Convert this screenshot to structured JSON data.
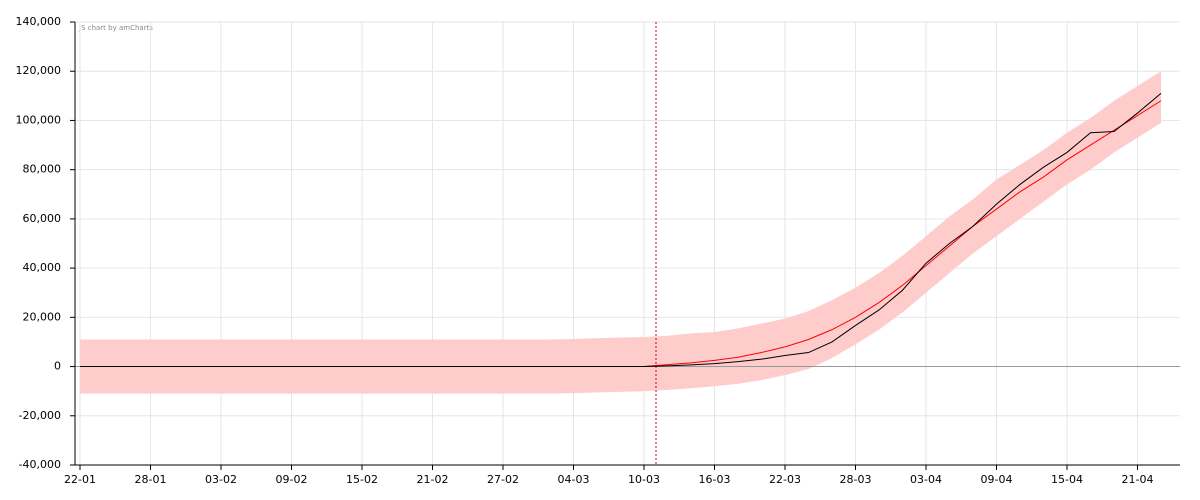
{
  "chart_data": {
    "type": "line",
    "credit": "JS chart by amCharts",
    "categories": [
      "22-01",
      null,
      null,
      "28-01",
      null,
      null,
      "03-02",
      null,
      null,
      "09-02",
      null,
      null,
      "15-02",
      null,
      null,
      "21-02",
      null,
      null,
      "27-02",
      null,
      null,
      "04-03",
      null,
      null,
      "10-03",
      null,
      null,
      "16-03",
      null,
      null,
      "22-03",
      null,
      null,
      "28-03",
      null,
      null,
      "03-04",
      null,
      null,
      "09-04",
      null,
      null,
      "15-04",
      null,
      null,
      "21-04",
      null
    ],
    "series": [
      {
        "color": "#ff0000",
        "values": [
          0,
          0,
          0,
          0,
          0,
          0,
          0,
          0,
          0,
          0,
          0,
          0,
          0,
          0,
          0,
          0,
          0,
          0,
          0,
          0,
          0,
          0,
          0,
          0,
          0,
          800,
          1500,
          2500,
          3800,
          5700,
          8000,
          11000,
          15000,
          20000,
          26000,
          33000,
          41000,
          49000,
          57000,
          64000,
          71000,
          77000,
          84000,
          90000,
          96000,
          102000,
          108000
        ]
      },
      {
        "color": "#000000",
        "values": [
          0,
          0,
          0,
          0,
          0,
          0,
          0,
          0,
          0,
          0,
          0,
          0,
          0,
          0,
          0,
          0,
          0,
          0,
          0,
          0,
          0,
          0,
          0,
          0,
          0,
          300,
          700,
          1200,
          2000,
          3000,
          4500,
          5700,
          10000,
          16700,
          23000,
          31000,
          42000,
          50000,
          57000,
          66000,
          74000,
          81000,
          87000,
          95000,
          95500,
          103000,
          111000
        ]
      }
    ],
    "band": {
      "color": "#ffcccc",
      "upper": [
        11000,
        11000,
        11000,
        11000,
        11000,
        11000,
        11000,
        11000,
        11000,
        11000,
        11000,
        11000,
        11000,
        11000,
        11000,
        11000,
        11000,
        11000,
        11000,
        11000,
        11000,
        11200,
        11500,
        11800,
        12000,
        12500,
        13500,
        14000,
        15500,
        17500,
        19500,
        22500,
        27000,
        32000,
        38000,
        45000,
        53000,
        61000,
        68000,
        76000,
        82000,
        88000,
        95000,
        101000,
        108000,
        114000,
        120000
      ],
      "lower": [
        -11000,
        -11000,
        -11000,
        -11000,
        -11000,
        -11000,
        -11000,
        -11000,
        -11000,
        -11000,
        -11000,
        -11000,
        -11000,
        -11000,
        -11000,
        -11000,
        -11000,
        -11000,
        -11000,
        -11000,
        -11000,
        -10800,
        -10500,
        -10300,
        -10000,
        -9500,
        -8800,
        -8000,
        -7000,
        -5500,
        -3500,
        -1000,
        3500,
        9000,
        15000,
        22000,
        30000,
        38000,
        46000,
        53000,
        60000,
        67000,
        74000,
        80000,
        87000,
        93000,
        99000
      ]
    },
    "ylim": [
      -40000,
      140000
    ],
    "yticks": [
      {
        "value": -40000,
        "label": "-40,000"
      },
      {
        "value": -20000,
        "label": "-20,000"
      },
      0,
      {
        "value": 20000,
        "label": "20,000"
      },
      {
        "value": 40000,
        "label": "40,000"
      },
      {
        "value": 60000,
        "label": "60,000"
      },
      {
        "value": 80000,
        "label": "80,000"
      },
      {
        "value": 100000,
        "label": "100,000"
      },
      {
        "value": 120000,
        "label": "120,000"
      },
      {
        "value": 140000,
        "label": "140,000"
      }
    ],
    "grid": true
  }
}
